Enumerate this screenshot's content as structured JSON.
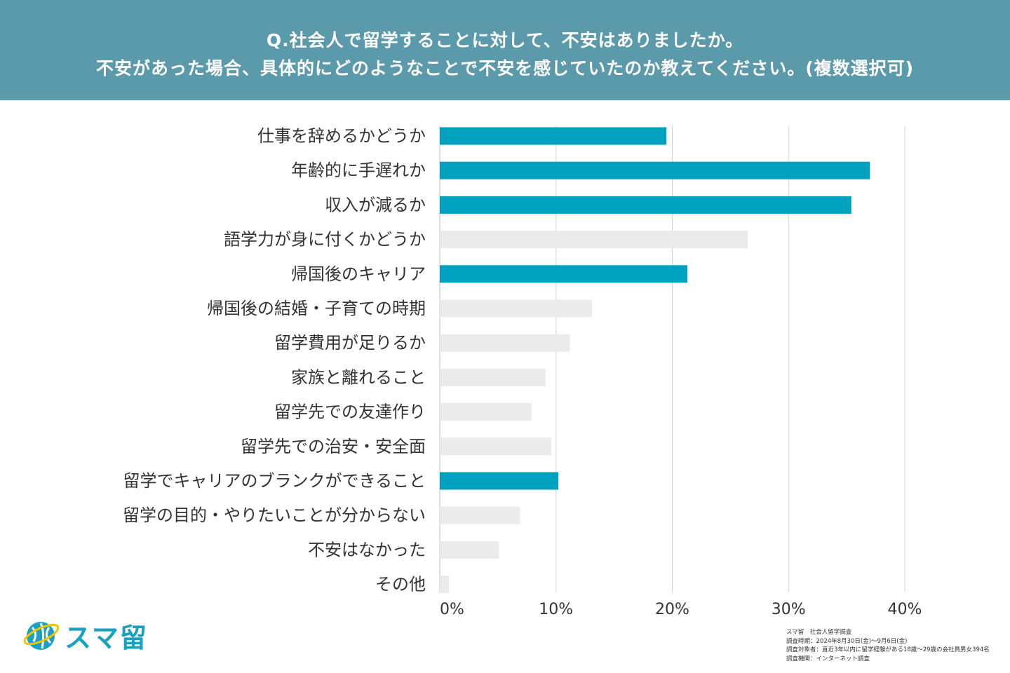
{
  "header": {
    "line1": "Q.社会人で留学することに対して、不安はありましたか。",
    "line2": "不安があった場合、具体的にどのようなことで不安を感じていたのか教えてください。(複数選択可)"
  },
  "chart_data": {
    "type": "bar",
    "orientation": "horizontal",
    "categories": [
      "仕事を辞めるかどうか",
      "年齢的に手遅れか",
      "収入が減るか",
      "語学力が身に付くかどうか",
      "帰国後のキャリア",
      "帰国後の結婚・子育ての時期",
      "留学費用が足りるか",
      "家族と離れること",
      "留学先での友達作り",
      "留学先での治安・安全面",
      "留学でキャリアのブランクができること",
      "留学の目的・やりたいことが分からない",
      "不安はなかった",
      "その他"
    ],
    "values": [
      19.5,
      37.0,
      35.4,
      26.5,
      21.3,
      13.1,
      11.2,
      9.1,
      7.9,
      9.6,
      10.2,
      6.9,
      5.1,
      0.8
    ],
    "highlighted": [
      true,
      true,
      true,
      false,
      true,
      false,
      false,
      false,
      false,
      false,
      true,
      false,
      false,
      false
    ],
    "xlim": [
      0,
      40
    ],
    "xticks": [
      0,
      10,
      20,
      30,
      40
    ],
    "xtick_labels": [
      "0%",
      "10%",
      "20%",
      "30%",
      "40%"
    ],
    "colors": {
      "highlight": "#00a0bf",
      "normal": "#ebebeb",
      "grid": "#d4d4d4"
    }
  },
  "logo": {
    "text": "スマ留",
    "icon": "globe-icon"
  },
  "footnote": {
    "line1": "スマ留　社会人留学調査",
    "line2": "調査時期：2024年8月30日(金)〜9月6日(金)",
    "line3": "調査対象者：直近3年以内に留学経験がある18歳〜29歳の会社員男女394名",
    "line4": "調査機関：インターネット調査"
  }
}
